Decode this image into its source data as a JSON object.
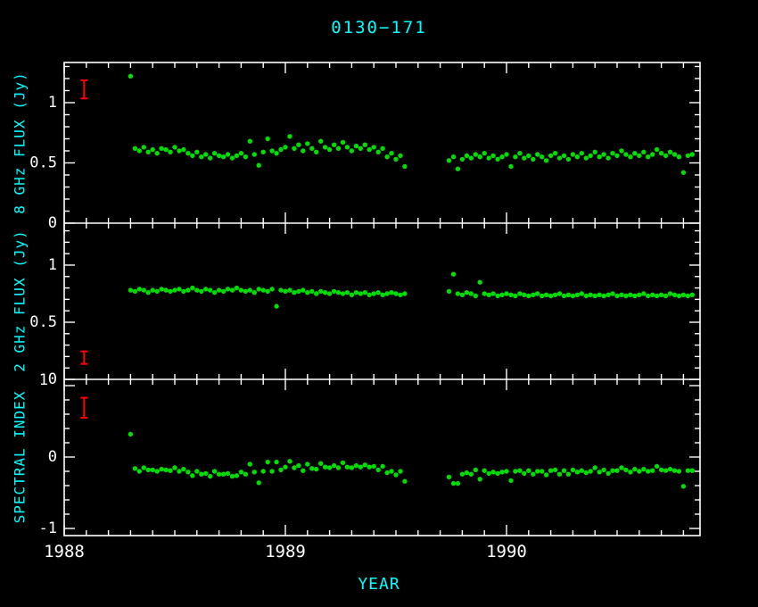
{
  "colors": {
    "background": "#000000",
    "frame": "#ffffff",
    "tick_label": "#ffffff",
    "axis_title": "#00ffff",
    "point": "#00dd00",
    "error_bar": "#ff0000"
  },
  "chart_data": {
    "type": "scatter",
    "title": "0130−171",
    "x_label": "YEAR",
    "x_range": [
      1988,
      1990.875
    ],
    "x_minor_step": 0.1,
    "x_ticks": [
      {
        "value": 1988,
        "label": "1988"
      },
      {
        "value": 1989,
        "label": "1989"
      },
      {
        "value": 1990,
        "label": "1990"
      }
    ],
    "x": [
      1988.3,
      1988.32,
      1988.34,
      1988.36,
      1988.38,
      1988.4,
      1988.42,
      1988.44,
      1988.46,
      1988.48,
      1988.5,
      1988.52,
      1988.54,
      1988.56,
      1988.58,
      1988.6,
      1988.62,
      1988.64,
      1988.66,
      1988.68,
      1988.7,
      1988.72,
      1988.74,
      1988.76,
      1988.78,
      1988.8,
      1988.82,
      1988.84,
      1988.86,
      1988.88,
      1988.9,
      1988.92,
      1988.94,
      1988.96,
      1988.98,
      1989.0,
      1989.02,
      1989.04,
      1989.06,
      1989.08,
      1989.1,
      1989.12,
      1989.14,
      1989.16,
      1989.18,
      1989.2,
      1989.22,
      1989.24,
      1989.26,
      1989.28,
      1989.3,
      1989.32,
      1989.34,
      1989.36,
      1989.38,
      1989.4,
      1989.42,
      1989.44,
      1989.46,
      1989.48,
      1989.5,
      1989.52,
      1989.54,
      1989.74,
      1989.76,
      1989.78,
      1989.8,
      1989.82,
      1989.84,
      1989.86,
      1989.88,
      1989.9,
      1989.92,
      1989.94,
      1989.96,
      1989.98,
      1990.0,
      1990.02,
      1990.04,
      1990.06,
      1990.08,
      1990.1,
      1990.12,
      1990.14,
      1990.16,
      1990.18,
      1990.2,
      1990.22,
      1990.24,
      1990.26,
      1990.28,
      1990.3,
      1990.32,
      1990.34,
      1990.36,
      1990.38,
      1990.4,
      1990.42,
      1990.44,
      1990.46,
      1990.48,
      1990.5,
      1990.52,
      1990.54,
      1990.56,
      1990.58,
      1990.6,
      1990.62,
      1990.64,
      1990.66,
      1990.68,
      1990.7,
      1990.72,
      1990.74,
      1990.76,
      1990.78,
      1990.8,
      1990.82,
      1990.84
    ],
    "panels": [
      {
        "name": "8ghz-flux",
        "ylabel": "8 GHz FLUX (Jy)",
        "y_range": [
          0,
          1.3333
        ],
        "y_minor_step": 0.1,
        "y_ticks": [
          {
            "value": 0,
            "label": "0"
          },
          {
            "value": 0.5,
            "label": "0.5"
          },
          {
            "value": 1,
            "label": "1"
          }
        ],
        "error_marker": {
          "x": 1988.09,
          "y": 1.11,
          "half_height": 0.075
        },
        "values": [
          1.22,
          0.62,
          0.6,
          0.63,
          0.59,
          0.61,
          0.58,
          0.62,
          0.61,
          0.59,
          0.63,
          0.6,
          0.61,
          0.58,
          0.56,
          0.59,
          0.55,
          0.57,
          0.54,
          0.58,
          0.56,
          0.55,
          0.57,
          0.54,
          0.56,
          0.58,
          0.55,
          0.68,
          0.57,
          0.48,
          0.59,
          0.7,
          0.6,
          0.58,
          0.61,
          0.63,
          0.72,
          0.62,
          0.65,
          0.6,
          0.66,
          0.62,
          0.59,
          0.68,
          0.63,
          0.61,
          0.65,
          0.62,
          0.67,
          0.63,
          0.6,
          0.64,
          0.62,
          0.65,
          0.61,
          0.63,
          0.59,
          0.62,
          0.55,
          0.58,
          0.53,
          0.56,
          0.47,
          0.52,
          0.55,
          0.45,
          0.53,
          0.56,
          0.54,
          0.57,
          0.55,
          0.58,
          0.54,
          0.56,
          0.53,
          0.55,
          0.57,
          0.47,
          0.55,
          0.58,
          0.54,
          0.56,
          0.53,
          0.57,
          0.55,
          0.52,
          0.56,
          0.58,
          0.54,
          0.56,
          0.53,
          0.57,
          0.55,
          0.58,
          0.54,
          0.56,
          0.59,
          0.55,
          0.57,
          0.54,
          0.58,
          0.56,
          0.6,
          0.57,
          0.55,
          0.58,
          0.56,
          0.59,
          0.55,
          0.57,
          0.61,
          0.58,
          0.56,
          0.59,
          0.57,
          0.55,
          0.42,
          0.56,
          0.57
        ]
      },
      {
        "name": "2ghz-flux",
        "ylabel": "2 GHz FLUX (Jy)",
        "y_range": [
          0,
          1.367
        ],
        "y_minor_step": 0.1,
        "y_ticks": [
          {
            "value": 0,
            "label": "0"
          },
          {
            "value": 0.5,
            "label": "0.5"
          },
          {
            "value": 1,
            "label": "1"
          }
        ],
        "error_marker": {
          "x": 1988.09,
          "y": 0.19,
          "half_height": 0.055
        },
        "values": [
          0.78,
          0.77,
          0.79,
          0.78,
          0.76,
          0.78,
          0.77,
          0.79,
          0.78,
          0.77,
          0.78,
          0.79,
          0.77,
          0.78,
          0.8,
          0.78,
          0.77,
          0.79,
          0.78,
          0.76,
          0.78,
          0.77,
          0.79,
          0.78,
          0.8,
          0.78,
          0.77,
          0.78,
          0.76,
          0.79,
          0.78,
          0.77,
          0.79,
          0.64,
          0.78,
          0.77,
          0.78,
          0.76,
          0.77,
          0.78,
          0.76,
          0.77,
          0.75,
          0.77,
          0.76,
          0.75,
          0.77,
          0.76,
          0.75,
          0.76,
          0.74,
          0.76,
          0.75,
          0.76,
          0.74,
          0.75,
          0.76,
          0.74,
          0.75,
          0.76,
          0.75,
          0.74,
          0.75,
          0.77,
          0.92,
          0.75,
          0.74,
          0.76,
          0.75,
          0.73,
          0.85,
          0.75,
          0.74,
          0.75,
          0.73,
          0.74,
          0.75,
          0.74,
          0.73,
          0.75,
          0.74,
          0.73,
          0.74,
          0.75,
          0.73,
          0.74,
          0.73,
          0.74,
          0.75,
          0.73,
          0.74,
          0.73,
          0.74,
          0.75,
          0.73,
          0.74,
          0.73,
          0.74,
          0.73,
          0.74,
          0.75,
          0.73,
          0.74,
          0.73,
          0.74,
          0.73,
          0.74,
          0.75,
          0.73,
          0.74,
          0.73,
          0.74,
          0.73,
          0.75,
          0.74,
          0.73,
          0.74,
          0.73,
          0.74
        ]
      },
      {
        "name": "spectral-index",
        "ylabel": "SPECTRAL INDEX",
        "y_range": [
          -1.1,
          1.0875
        ],
        "y_minor_step": 0.2,
        "y_ticks": [
          {
            "value": -1,
            "label": "-1"
          },
          {
            "value": 0,
            "label": "0"
          },
          {
            "value": 1,
            "label": "1"
          }
        ],
        "error_marker": {
          "x": 1988.09,
          "y": 0.69,
          "half_height": 0.14
        },
        "values": [
          0.32,
          -0.16,
          -0.2,
          -0.15,
          -0.18,
          -0.18,
          -0.2,
          -0.17,
          -0.18,
          -0.19,
          -0.15,
          -0.2,
          -0.17,
          -0.21,
          -0.26,
          -0.2,
          -0.24,
          -0.23,
          -0.27,
          -0.2,
          -0.24,
          -0.24,
          -0.23,
          -0.27,
          -0.26,
          -0.21,
          -0.24,
          -0.1,
          -0.21,
          -0.36,
          -0.2,
          -0.07,
          -0.2,
          -0.07,
          -0.18,
          -0.14,
          -0.06,
          -0.15,
          -0.12,
          -0.19,
          -0.1,
          -0.16,
          -0.17,
          -0.09,
          -0.14,
          -0.15,
          -0.12,
          -0.15,
          -0.08,
          -0.14,
          -0.15,
          -0.12,
          -0.14,
          -0.11,
          -0.14,
          -0.13,
          -0.18,
          -0.13,
          -0.22,
          -0.2,
          -0.25,
          -0.2,
          -0.34,
          -0.28,
          -0.37,
          -0.37,
          -0.24,
          -0.22,
          -0.24,
          -0.18,
          -0.31,
          -0.19,
          -0.23,
          -0.21,
          -0.23,
          -0.21,
          -0.2,
          -0.33,
          -0.2,
          -0.19,
          -0.23,
          -0.19,
          -0.24,
          -0.2,
          -0.2,
          -0.25,
          -0.19,
          -0.18,
          -0.24,
          -0.19,
          -0.24,
          -0.18,
          -0.21,
          -0.19,
          -0.22,
          -0.2,
          -0.15,
          -0.21,
          -0.18,
          -0.23,
          -0.19,
          -0.19,
          -0.15,
          -0.18,
          -0.21,
          -0.17,
          -0.2,
          -0.17,
          -0.2,
          -0.19,
          -0.13,
          -0.18,
          -0.19,
          -0.17,
          -0.19,
          -0.2,
          -0.41,
          -0.19,
          -0.19
        ]
      }
    ]
  }
}
